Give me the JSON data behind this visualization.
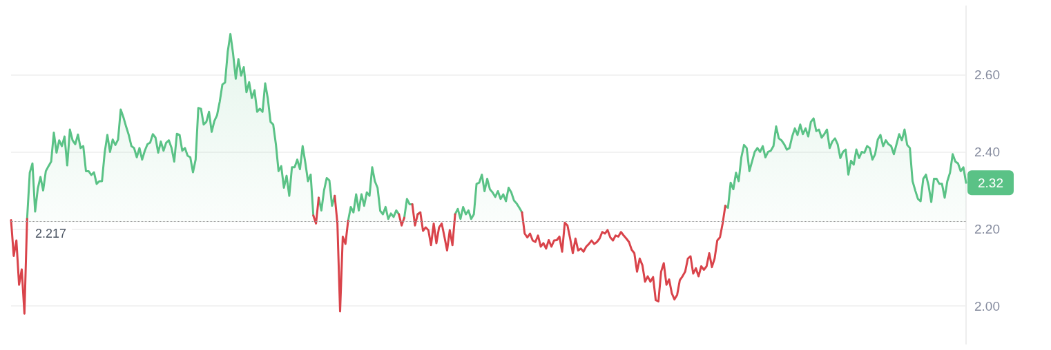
{
  "chart_data": {
    "type": "area",
    "categories": [
      null,
      null,
      null,
      null,
      null,
      null,
      null,
      null,
      null,
      null,
      null,
      null,
      null,
      null,
      null,
      null,
      null,
      null,
      null,
      null,
      null,
      null,
      null,
      null,
      null,
      null,
      null,
      null,
      null,
      null,
      null,
      null,
      null,
      null,
      null,
      null,
      null,
      null,
      null,
      null,
      null,
      null,
      null,
      null,
      null,
      null,
      null,
      null,
      null,
      null,
      null,
      null,
      null,
      null,
      null,
      null,
      null,
      null,
      null,
      null,
      null,
      null,
      null,
      null,
      null,
      null,
      null,
      null,
      null,
      null,
      null,
      null,
      null,
      null,
      null,
      null,
      null,
      null,
      null,
      null,
      null,
      null,
      null,
      null,
      null,
      null,
      null,
      null,
      null,
      null,
      null,
      null,
      null,
      null,
      null,
      null,
      null,
      null,
      null,
      null,
      null,
      null,
      null,
      null,
      null,
      null,
      null,
      null,
      null,
      null,
      null,
      null,
      null,
      null,
      null,
      null,
      null,
      null,
      null,
      null,
      null,
      null,
      null,
      null,
      null,
      null,
      null,
      null,
      null,
      null,
      null,
      null,
      null,
      null,
      null,
      null,
      null,
      null,
      null,
      null,
      null,
      null,
      null,
      null,
      null,
      null,
      null,
      null,
      null,
      null,
      null,
      null,
      null,
      null,
      null,
      null,
      null,
      null,
      null,
      null,
      null,
      null,
      null,
      null,
      null,
      null,
      null,
      null,
      null,
      null,
      null,
      null,
      null,
      null,
      null,
      null,
      null,
      null,
      null,
      null,
      null,
      null,
      null,
      null,
      null,
      null,
      null,
      null,
      null,
      null,
      null,
      null,
      null,
      null,
      null,
      null,
      null,
      null,
      null,
      null,
      null,
      null,
      null,
      null,
      null,
      null,
      null,
      null,
      null,
      null,
      null,
      null,
      null,
      null,
      null,
      null,
      null,
      null,
      null,
      null,
      null,
      null,
      null,
      null,
      null,
      null,
      null,
      null,
      null,
      null,
      null,
      null,
      null,
      null,
      null,
      null,
      null,
      null,
      null,
      null,
      null,
      null,
      null,
      null,
      null,
      null,
      null,
      null,
      null,
      null,
      null,
      null,
      null,
      null,
      null,
      null,
      null,
      null,
      null,
      null,
      null,
      null,
      null,
      null,
      null,
      null,
      null,
      null,
      null,
      null,
      null,
      null,
      null,
      null,
      null,
      null,
      null,
      null,
      null,
      null,
      null,
      null,
      null,
      null,
      null,
      null,
      null,
      null,
      null,
      null,
      null,
      null,
      null,
      null,
      null,
      null,
      null,
      null,
      null,
      null,
      null,
      null,
      null,
      null,
      null,
      null,
      null,
      null,
      null,
      null,
      null,
      null,
      null,
      null,
      null,
      null,
      null,
      null,
      null,
      null,
      null,
      null,
      null,
      null,
      null,
      null,
      null,
      null,
      null,
      null,
      null,
      null,
      null,
      null,
      null,
      null,
      null,
      null,
      null,
      null,
      null,
      null,
      null,
      null,
      null,
      null,
      null,
      null,
      null,
      null,
      null,
      null,
      null,
      null,
      null,
      null,
      null,
      null
    ],
    "series": [
      {
        "color": "#5ac286",
        "values": [
          null,
          null,
          null,
          null,
          null,
          null,
          2.226,
          2.346,
          2.37,
          2.245,
          2.305,
          2.335,
          2.3,
          2.35,
          2.363,
          2.375,
          2.45,
          2.398,
          2.43,
          2.415,
          2.44,
          2.365,
          2.458,
          2.43,
          2.42,
          2.445,
          2.41,
          2.415,
          2.35,
          2.35,
          2.34,
          2.347,
          2.317,
          2.324,
          2.324,
          2.398,
          2.444,
          2.4,
          2.432,
          2.418,
          2.432,
          2.51,
          2.49,
          2.466,
          2.444,
          2.415,
          2.41,
          2.386,
          2.41,
          2.38,
          2.403,
          2.42,
          2.424,
          2.446,
          2.437,
          2.398,
          2.427,
          2.403,
          2.424,
          2.43,
          2.41,
          2.375,
          2.447,
          2.444,
          2.403,
          2.41,
          2.39,
          2.386,
          2.347,
          2.38,
          2.514,
          2.512,
          2.471,
          2.478,
          2.504,
          2.452,
          2.48,
          2.495,
          2.53,
          2.575,
          2.58,
          2.66,
          2.706,
          2.655,
          2.59,
          2.641,
          2.598,
          2.62,
          2.555,
          2.581,
          2.54,
          2.56,
          2.504,
          2.512,
          2.504,
          2.578,
          2.538,
          2.478,
          2.471,
          2.42,
          2.35,
          2.363,
          2.307,
          2.338,
          2.286,
          2.36,
          2.36,
          2.38,
          2.355,
          2.415,
          2.372,
          2.324,
          2.341,
          2.235,
          null,
          2.281,
          2.248,
          2.3,
          2.332,
          2.326,
          2.26,
          2.286,
          null,
          null,
          null,
          null,
          2.221,
          2.257,
          2.243,
          2.29,
          2.248,
          2.29,
          2.26,
          2.295,
          2.286,
          2.36,
          2.324,
          2.307,
          2.247,
          2.238,
          2.257,
          2.226,
          2.24,
          2.231,
          2.248,
          2.238,
          null,
          2.229,
          2.278,
          2.264,
          2.264,
          null,
          2.238,
          2.243,
          null,
          null,
          null,
          null,
          null,
          null,
          null,
          null,
          null,
          null,
          null,
          null,
          2.238,
          2.252,
          2.226,
          2.257,
          2.238,
          2.248,
          2.226,
          2.238,
          2.317,
          2.32,
          2.341,
          2.298,
          2.33,
          2.303,
          2.295,
          2.283,
          2.298,
          2.278,
          2.29,
          2.272,
          2.307,
          2.295,
          2.274,
          2.266,
          2.255,
          2.243,
          null,
          null,
          null,
          null,
          null,
          null,
          null,
          null,
          null,
          null,
          null,
          null,
          null,
          null,
          null,
          null,
          null,
          null,
          null,
          null,
          null,
          null,
          null,
          null,
          null,
          null,
          null,
          null,
          null,
          null,
          null,
          null,
          null,
          null,
          null,
          null,
          null,
          null,
          null,
          null,
          null,
          null,
          null,
          null,
          null,
          null,
          null,
          null,
          null,
          null,
          null,
          null,
          null,
          null,
          null,
          null,
          null,
          null,
          null,
          null,
          null,
          null,
          null,
          null,
          null,
          null,
          null,
          null,
          null,
          null,
          null,
          null,
          null,
          null,
          null,
          2.26,
          2.255,
          2.32,
          2.303,
          2.346,
          2.324,
          2.386,
          2.418,
          2.41,
          2.35,
          2.375,
          2.4,
          2.41,
          2.4,
          2.415,
          2.386,
          2.4,
          2.403,
          2.415,
          2.466,
          2.435,
          2.43,
          2.42,
          2.406,
          2.41,
          2.44,
          2.461,
          2.444,
          2.471,
          2.446,
          2.461,
          2.44,
          2.478,
          2.487,
          2.454,
          2.458,
          2.437,
          2.446,
          2.458,
          2.41,
          2.427,
          2.435,
          2.42,
          2.384,
          2.4,
          2.406,
          2.341,
          2.377,
          2.367,
          2.406,
          2.384,
          2.4,
          2.398,
          2.415,
          2.41,
          2.38,
          2.394,
          2.432,
          2.444,
          2.415,
          2.43,
          2.42,
          2.415,
          2.394,
          2.42,
          2.446,
          2.43,
          2.458,
          2.418,
          2.41,
          2.324,
          2.3,
          2.278,
          2.272,
          2.33,
          2.341,
          2.312,
          2.27,
          2.33,
          2.33,
          2.317,
          2.317,
          2.281,
          2.324,
          2.346,
          2.394,
          2.375,
          2.37,
          2.35,
          2.36,
          2.32
        ]
      },
      {
        "type": "line",
        "color": "#d9434a",
        "values": [
          2.223,
          2.13,
          2.17,
          2.055,
          2.095,
          1.98,
          2.226,
          null,
          null,
          null,
          null,
          null,
          null,
          null,
          null,
          null,
          null,
          null,
          null,
          null,
          null,
          null,
          null,
          null,
          null,
          null,
          null,
          null,
          null,
          null,
          null,
          null,
          null,
          null,
          null,
          null,
          null,
          null,
          null,
          null,
          null,
          null,
          null,
          null,
          null,
          null,
          null,
          null,
          null,
          null,
          null,
          null,
          null,
          null,
          null,
          null,
          null,
          null,
          null,
          null,
          null,
          null,
          null,
          null,
          null,
          null,
          null,
          null,
          null,
          null,
          null,
          null,
          null,
          null,
          null,
          null,
          null,
          null,
          null,
          null,
          null,
          null,
          null,
          null,
          null,
          null,
          null,
          null,
          null,
          null,
          null,
          null,
          null,
          null,
          null,
          null,
          null,
          null,
          null,
          null,
          null,
          null,
          null,
          null,
          null,
          null,
          null,
          null,
          null,
          null,
          null,
          null,
          null,
          2.235,
          2.214,
          2.281,
          null,
          null,
          null,
          null,
          null,
          2.286,
          2.214,
          1.986,
          2.18,
          2.161,
          2.221,
          null,
          null,
          null,
          null,
          null,
          null,
          null,
          null,
          null,
          null,
          null,
          null,
          null,
          null,
          null,
          null,
          null,
          null,
          2.238,
          2.209,
          2.229,
          null,
          null,
          2.264,
          2.209,
          2.238,
          2.243,
          2.195,
          2.204,
          2.197,
          2.158,
          2.214,
          2.163,
          2.204,
          2.214,
          2.18,
          2.144,
          2.197,
          2.158,
          2.238,
          null,
          null,
          null,
          null,
          null,
          null,
          null,
          null,
          null,
          null,
          null,
          null,
          null,
          null,
          null,
          null,
          null,
          null,
          null,
          null,
          null,
          null,
          null,
          null,
          2.243,
          2.188,
          2.178,
          2.188,
          2.17,
          2.166,
          2.183,
          2.154,
          2.163,
          2.149,
          2.171,
          2.154,
          2.17,
          2.171,
          2.18,
          2.141,
          2.216,
          2.209,
          2.175,
          2.137,
          2.175,
          2.144,
          2.149,
          2.141,
          2.154,
          2.161,
          2.17,
          2.161,
          2.166,
          2.175,
          2.192,
          2.188,
          2.197,
          2.178,
          2.17,
          2.183,
          2.18,
          2.192,
          2.183,
          2.175,
          2.166,
          2.146,
          2.137,
          2.089,
          2.123,
          2.106,
          2.063,
          2.077,
          2.063,
          2.075,
          2.015,
          2.012,
          2.089,
          2.111,
          2.055,
          2.069,
          2.033,
          2.017,
          2.029,
          2.067,
          2.077,
          2.089,
          2.123,
          2.129,
          2.084,
          2.098,
          2.077,
          2.103,
          2.094,
          2.103,
          2.137,
          2.101,
          2.123,
          2.17,
          2.178,
          2.214,
          2.26,
          null,
          null,
          null,
          null,
          null,
          null,
          null,
          null,
          null,
          null,
          null,
          null,
          null,
          null,
          null,
          null,
          null,
          null,
          null,
          null,
          null,
          null,
          null,
          null,
          null,
          null,
          null,
          null,
          null,
          null,
          null,
          null,
          null,
          null,
          null,
          null,
          null,
          null,
          null,
          null,
          null,
          null,
          null,
          null,
          null,
          null,
          null,
          null,
          null,
          null,
          null,
          null,
          null,
          null,
          null,
          null,
          null,
          null,
          null,
          null,
          null,
          null,
          null,
          null,
          null,
          null,
          null,
          null,
          null,
          null,
          null,
          null,
          null,
          null,
          null,
          null,
          null,
          null,
          null,
          null,
          null,
          null,
          null,
          null,
          null,
          null,
          null,
          null,
          null,
          null
        ]
      }
    ],
    "ylim": [
      1.9,
      2.78
    ],
    "yticks": [
      {
        "value": 2.0,
        "label": "2.00"
      },
      {
        "value": 2.2,
        "label": "2.20"
      },
      {
        "value": 2.4,
        "label": "2.40"
      },
      {
        "value": 2.6,
        "label": "2.60"
      }
    ],
    "grid": "y",
    "tick_labels": "y",
    "ref_lines": [
      {
        "axis": "y",
        "value": 2.217,
        "label": "2.217",
        "color": "#9a9a9a",
        "line_style": "dotted"
      }
    ],
    "annotations": [
      "2.32"
    ]
  }
}
